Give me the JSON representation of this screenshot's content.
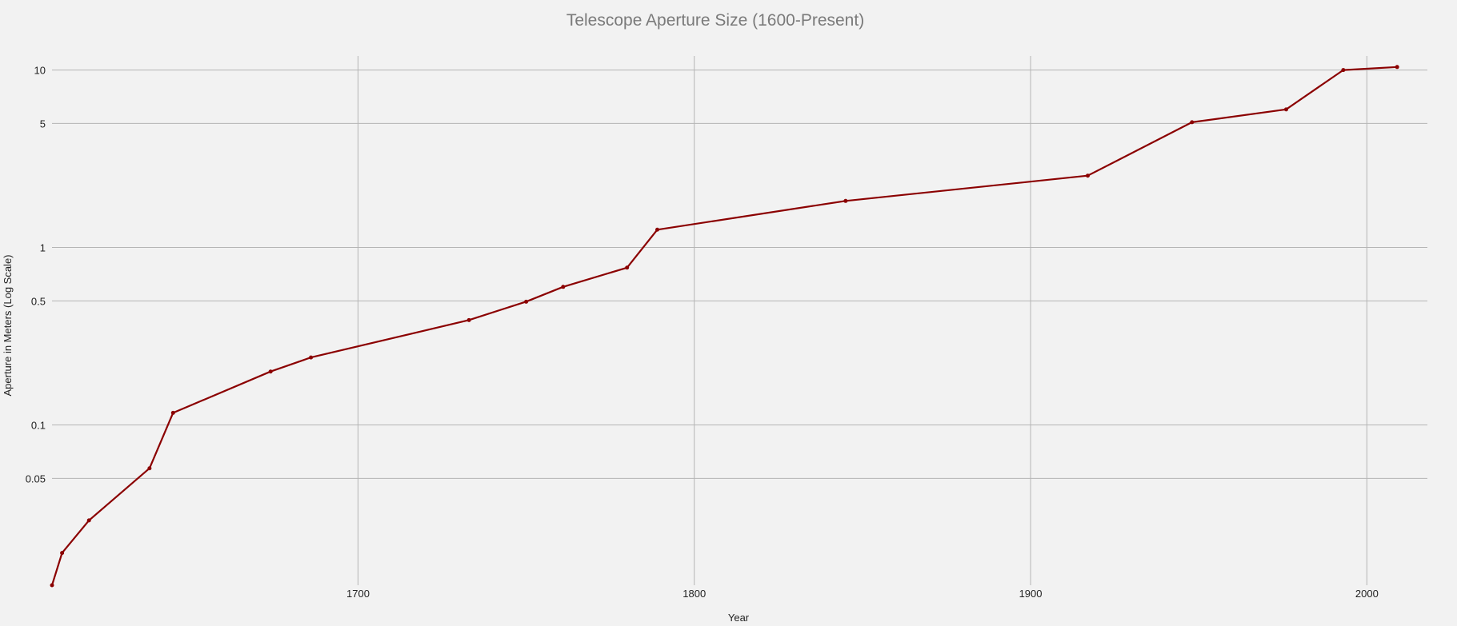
{
  "chart_data": {
    "type": "line",
    "title": "Telescope Aperture Size (1600-Present)",
    "xlabel": "Year",
    "ylabel": "Aperture in Meters (Log Scale)",
    "y_scale": "log",
    "xlim": [
      1609,
      2018
    ],
    "ylim": [
      0.0125,
      12
    ],
    "x_ticks": [
      1700,
      1800,
      1900,
      2000
    ],
    "y_ticks": [
      0.05,
      0.1,
      0.5,
      1,
      5,
      10
    ],
    "y_tick_labels": [
      "0.05",
      "0.1",
      "0.5",
      "1",
      "5",
      "10"
    ],
    "grid": true,
    "series": [
      {
        "color": "#8b0000",
        "x": [
          1609,
          1612,
          1620,
          1638,
          1645,
          1674,
          1686,
          1733,
          1750,
          1761,
          1780,
          1789,
          1845,
          1917,
          1948,
          1976,
          1993,
          2009
        ],
        "y": [
          0.0125,
          0.019,
          0.029,
          0.057,
          0.117,
          0.2,
          0.24,
          0.39,
          0.495,
          0.6,
          0.77,
          1.26,
          1.83,
          2.54,
          5.08,
          6.0,
          10.0,
          10.4
        ]
      }
    ]
  }
}
